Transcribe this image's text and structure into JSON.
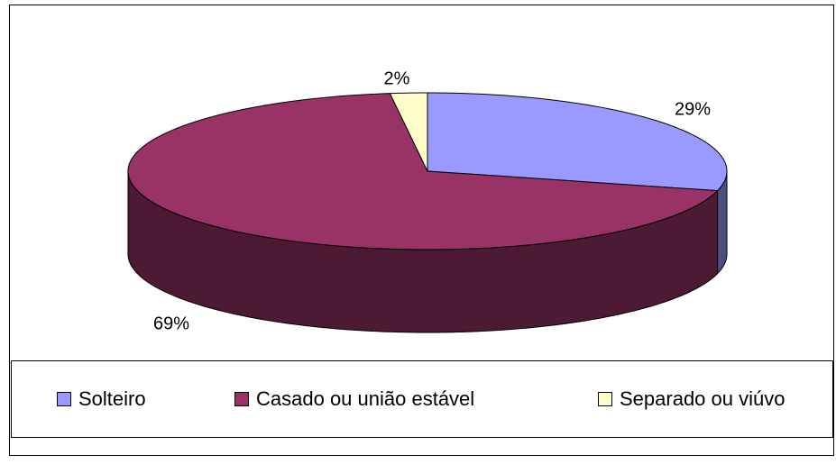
{
  "chart_data": {
    "type": "pie",
    "categories": [
      "Solteiro",
      "Casado ou união estável",
      "Separado ou viúvo"
    ],
    "values": [
      29,
      69,
      2
    ],
    "value_labels": [
      "29%",
      "69%",
      "2%"
    ],
    "colors": [
      "#9999FF",
      "#993366",
      "#FFFFCC"
    ],
    "side_colors": [
      "#4D4D80",
      "#4D1A33",
      "#808066"
    ],
    "legend": "bottom"
  }
}
